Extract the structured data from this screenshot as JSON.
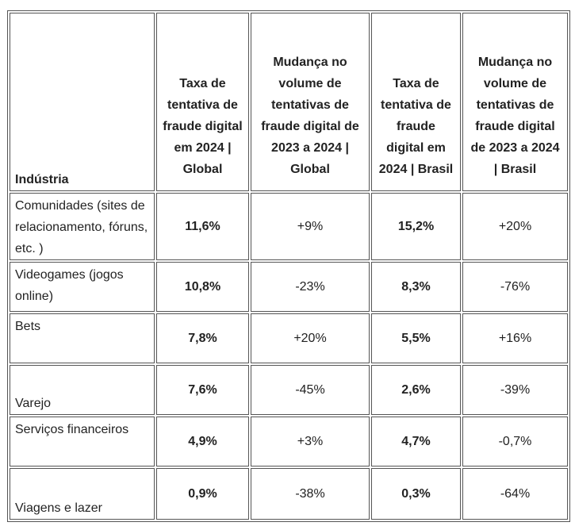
{
  "table": {
    "headers": [
      "Indústria",
      "Taxa de tentativa de fraude digital em 2024 | Global",
      "Mudança no volume de tentativas de fraude digital de 2023 a 2024 | Global",
      "Taxa de tentativa de fraude digital em 2024 | Brasil",
      "Mudança no volume de tentativas de fraude digital de 2023 a 2024 | Brasil"
    ],
    "rows": [
      {
        "industry": "Comunidades (sites de relacionamento, fóruns, etc. )",
        "rate_global": "11,6%",
        "change_global": "+9%",
        "rate_brasil": "15,2%",
        "change_brasil": "+20%"
      },
      {
        "industry": "Videogames (jogos online)",
        "rate_global": "10,8%",
        "change_global": "-23%",
        "rate_brasil": "8,3%",
        "change_brasil": "-76%"
      },
      {
        "industry": "Bets",
        "rate_global": "7,8%",
        "change_global": "+20%",
        "rate_brasil": "5,5%",
        "change_brasil": "+16%"
      },
      {
        "industry": "Varejo",
        "rate_global": "7,6%",
        "change_global": "-45%",
        "rate_brasil": "2,6%",
        "change_brasil": "-39%"
      },
      {
        "industry": "Serviços financeiros",
        "rate_global": "4,9%",
        "change_global": "+3%",
        "rate_brasil": "4,7%",
        "change_brasil": "-0,7%"
      },
      {
        "industry": "Viagens e lazer",
        "rate_global": "0,9%",
        "change_global": "-38%",
        "rate_brasil": "0,3%",
        "change_brasil": "-64%"
      }
    ]
  }
}
